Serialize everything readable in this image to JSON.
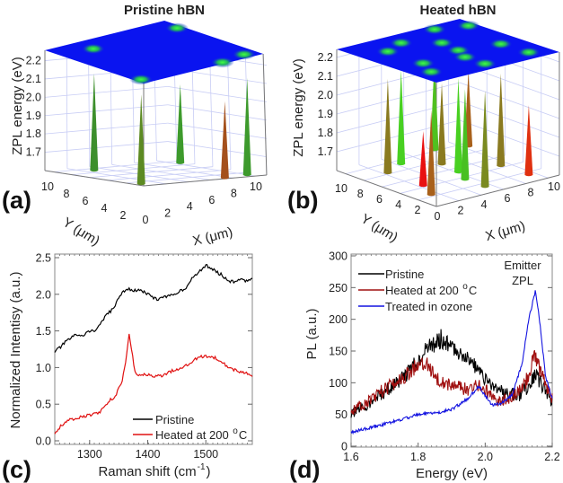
{
  "panels_3d": [
    {
      "letter": "(a)",
      "title": "Pristine hBN",
      "zlabel": "ZPL energy (eV)",
      "xlabel": "X (μm)",
      "ylabel": "Y (μm)",
      "zticks": [
        "1.7",
        "1.8",
        "1.9",
        "2.0",
        "2.1",
        "2.2"
      ],
      "xticks": [
        "0",
        "2",
        "4",
        "6",
        "8",
        "10"
      ],
      "yticks": [
        "10",
        "8",
        "6",
        "4",
        "2"
      ],
      "plane_color": "#0a14f0",
      "emitters": [
        {
          "x": 2.8,
          "y": 9.0,
          "energy": 2.13,
          "color": "#3d8f2c"
        },
        {
          "x": 0.5,
          "y": 0.9,
          "energy": 2.09,
          "color": "#5c8a22"
        },
        {
          "x": 10.5,
          "y": 9.0,
          "energy": 2.03,
          "color": "#3d9a2c"
        },
        {
          "x": 7.5,
          "y": 0.3,
          "energy": 2.02,
          "color": "#a4501c"
        },
        {
          "x": 9.9,
          "y": 0.8,
          "energy": 2.13,
          "color": "#3d9a2c"
        }
      ]
    },
    {
      "letter": "(b)",
      "title": "Heated hBN",
      "zlabel": "ZPL energy (eV)",
      "xlabel": "X (μm)",
      "ylabel": "Y (μm)",
      "zticks": [
        "1.7",
        "1.8",
        "1.9",
        "2.0",
        "2.1",
        "2.2"
      ],
      "xticks": [
        "0",
        "2",
        "4",
        "6",
        "8",
        "10"
      ],
      "yticks": [
        "10",
        "8",
        "6",
        "4",
        "2"
      ],
      "plane_color": "#0a14f0",
      "emitters": [
        {
          "x": 2.3,
          "y": 8.2,
          "energy": 2.1,
          "color": "#8a7a20"
        },
        {
          "x": 4.3,
          "y": 9.2,
          "energy": 2.1,
          "color": "#48d021"
        },
        {
          "x": 2.3,
          "y": 4.3,
          "energy": 1.89,
          "color": "#e81010"
        },
        {
          "x": 1.4,
          "y": 2.3,
          "energy": 2.05,
          "color": "#a8601a"
        },
        {
          "x": 8.1,
          "y": 10.2,
          "energy": 2.1,
          "color": "#50c020"
        },
        {
          "x": 6.4,
          "y": 7.3,
          "energy": 2.03,
          "color": "#8a7a20"
        },
        {
          "x": 6.1,
          "y": 5.1,
          "energy": 2.1,
          "color": "#48d021"
        },
        {
          "x": 5.4,
          "y": 3.5,
          "energy": 2.08,
          "color": "#48c021"
        },
        {
          "x": 10.4,
          "y": 9.3,
          "energy": 2.0,
          "color": "#a8601a"
        },
        {
          "x": 5.4,
          "y": 1.3,
          "energy": 2.11,
          "color": "#7a8a20"
        },
        {
          "x": 9.25,
          "y": 4.3,
          "energy": 2.09,
          "color": "#8a7a20"
        },
        {
          "x": 9.4,
          "y": 1.4,
          "energy": 1.97,
          "color": "#e03010"
        }
      ]
    }
  ],
  "chart_data": [
    {
      "type": "line",
      "letter": "(c)",
      "title": "",
      "xlabel": {
        "main": "Raman shift (cm",
        "sup": "-1",
        "end": ")"
      },
      "ylabel": "Normalized Intentisy (a.u.)",
      "xlim": [
        1240,
        1580
      ],
      "ylim": [
        0,
        2.5
      ],
      "xticks": [
        1300,
        1400,
        1500
      ],
      "yticks": [
        "0.0",
        "0.5",
        "1.0",
        "1.5",
        "2.0",
        "2.5"
      ],
      "legend_position": "bottom-right",
      "series": [
        {
          "name": "Pristine",
          "legend": {
            "main": "Pristine",
            "sup": "",
            "end": ""
          },
          "color": "#000000",
          "x": [
            1240,
            1250,
            1260,
            1275,
            1290,
            1300,
            1310,
            1320,
            1330,
            1340,
            1350,
            1360,
            1365,
            1375,
            1390,
            1400,
            1410,
            1420,
            1430,
            1440,
            1455,
            1465,
            1475,
            1485,
            1495,
            1500,
            1510,
            1520,
            1530,
            1540,
            1550,
            1560,
            1570,
            1580
          ],
          "y": [
            1.22,
            1.28,
            1.36,
            1.44,
            1.45,
            1.5,
            1.5,
            1.62,
            1.72,
            1.8,
            1.95,
            2.05,
            2.08,
            2.05,
            2.05,
            2.0,
            1.95,
            1.93,
            1.97,
            1.98,
            2.05,
            2.08,
            2.2,
            2.28,
            2.35,
            2.4,
            2.35,
            2.3,
            2.25,
            2.18,
            2.17,
            2.2,
            2.18,
            2.22
          ]
        },
        {
          "name": "Heated at 200 °C",
          "legend": {
            "main": "Heated at 200 ",
            "sup": "o",
            "end": "C"
          },
          "color": "#e01010",
          "x": [
            1240,
            1250,
            1265,
            1280,
            1300,
            1315,
            1325,
            1335,
            1345,
            1355,
            1362,
            1368,
            1373,
            1378,
            1382,
            1400,
            1420,
            1440,
            1460,
            1475,
            1490,
            1500,
            1515,
            1525,
            1540,
            1555,
            1570,
            1580
          ],
          "y": [
            0.1,
            0.2,
            0.28,
            0.32,
            0.35,
            0.38,
            0.45,
            0.55,
            0.62,
            0.8,
            1.05,
            1.45,
            1.2,
            0.95,
            0.9,
            0.9,
            0.88,
            0.95,
            1.0,
            1.08,
            1.15,
            1.15,
            1.14,
            1.1,
            1.0,
            0.95,
            0.92,
            0.88
          ]
        }
      ]
    },
    {
      "type": "line",
      "letter": "(d)",
      "title": "",
      "xlabel": {
        "main": "Energy (eV)",
        "sup": "",
        "end": ""
      },
      "ylabel": "PL (a.u.)",
      "xlim": [
        1.6,
        2.2
      ],
      "ylim": [
        0,
        300
      ],
      "xticks": [
        "1.6",
        "1.8",
        "2.0",
        "2.2"
      ],
      "yticks": [
        "0",
        "50",
        "100",
        "150",
        "200",
        "250",
        "300"
      ],
      "legend_position": "top-left",
      "annotation": [
        "Emitter",
        "ZPL"
      ],
      "series": [
        {
          "name": "Pristine",
          "legend": {
            "main": "Pristine",
            "sup": "",
            "end": ""
          },
          "color": "#000000",
          "x": [
            1.6,
            1.65,
            1.7,
            1.75,
            1.8,
            1.83,
            1.87,
            1.9,
            1.95,
            2.0,
            2.05,
            2.1,
            2.13,
            2.15,
            2.17,
            2.2
          ],
          "y": [
            50,
            65,
            85,
            105,
            135,
            155,
            170,
            155,
            140,
            105,
            85,
            80,
            95,
            115,
            95,
            70
          ]
        },
        {
          "name": "Heated at 200 °C",
          "legend": {
            "main": "Heated at 200 ",
            "sup": "o",
            "end": "C"
          },
          "color": "#a01010",
          "x": [
            1.6,
            1.65,
            1.7,
            1.75,
            1.8,
            1.82,
            1.85,
            1.9,
            1.95,
            1.98,
            2.0,
            2.03,
            2.05,
            2.08,
            2.12,
            2.15,
            2.17,
            2.2
          ],
          "y": [
            55,
            70,
            90,
            105,
            130,
            135,
            110,
            95,
            90,
            95,
            88,
            75,
            70,
            78,
            100,
            145,
            110,
            75
          ]
        },
        {
          "name": "Treated in ozone",
          "legend": {
            "main": "Treated in ozone",
            "sup": "",
            "end": ""
          },
          "color": "#1414e0",
          "x": [
            1.6,
            1.65,
            1.7,
            1.75,
            1.8,
            1.85,
            1.9,
            1.95,
            1.98,
            2.0,
            2.02,
            2.05,
            2.08,
            2.11,
            2.13,
            2.15,
            2.16,
            2.18,
            2.2
          ],
          "y": [
            22,
            28,
            35,
            42,
            50,
            52,
            58,
            75,
            95,
            80,
            65,
            68,
            80,
            130,
            200,
            245,
            210,
            110,
            75
          ]
        }
      ]
    }
  ]
}
